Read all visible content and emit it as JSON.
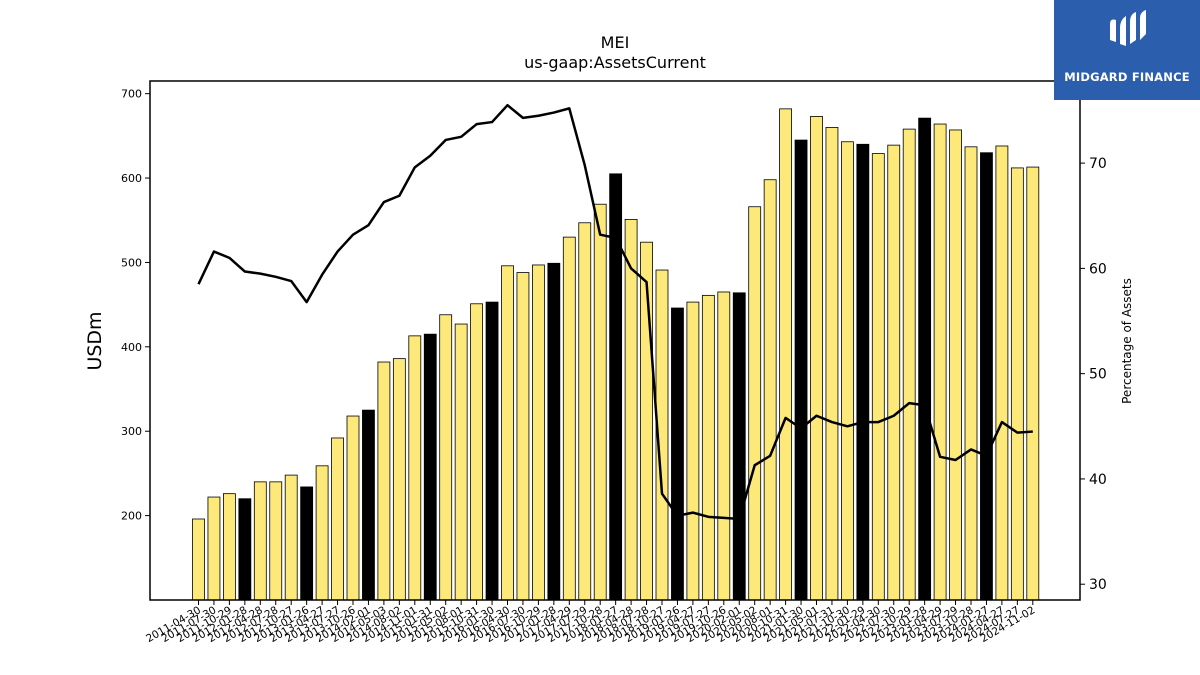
{
  "chart_data": {
    "type": "bar",
    "title": "MEI",
    "subtitle": "us-gaap:AssetsCurrent",
    "ylabel": "USDm",
    "y2label": "Percentage of Assets",
    "ylim": [
      100,
      715
    ],
    "y2lim": [
      28.5,
      77.8
    ],
    "yticks": [
      200,
      300,
      400,
      500,
      600,
      700
    ],
    "y2ticks": [
      30,
      40,
      50,
      60,
      70
    ],
    "categories": [
      "2011-04-30",
      "2011-07-30",
      "2011-10-29",
      "2012-01-28",
      "2012-04-28",
      "2012-07-28",
      "2012-10-27",
      "2013-01-26",
      "2013-04-27",
      "2013-07-27",
      "2013-10-26",
      "2014-02-01",
      "2014-05-03",
      "2014-08-02",
      "2014-11-01",
      "2015-01-31",
      "2015-05-02",
      "2015-08-01",
      "2015-10-31",
      "2016-01-30",
      "2016-04-30",
      "2016-07-30",
      "2016-10-29",
      "2017-01-28",
      "2017-04-29",
      "2017-07-29",
      "2017-10-28",
      "2018-01-27",
      "2018-04-28",
      "2018-07-28",
      "2018-10-27",
      "2019-01-26",
      "2019-04-27",
      "2019-07-27",
      "2019-10-26",
      "2020-02-01",
      "2020-05-02",
      "2020-08-01",
      "2020-10-31",
      "2021-01-30",
      "2021-05-01",
      "2021-07-31",
      "2021-10-30",
      "2022-01-29",
      "2022-04-30",
      "2022-07-30",
      "2022-10-29",
      "2023-01-28",
      "2023-04-29",
      "2023-07-29",
      "2023-10-28",
      "2024-01-27",
      "2024-04-27",
      "2024-07-27",
      "2024-11-02"
    ],
    "tick_labels": [
      "2011-04-30",
      "2011-07-30",
      "2011-10-29",
      "2012-01-28",
      "2012-04-28",
      "2012-07-28",
      "2012-10-27",
      "2013-01-26",
      "2013-04-27",
      "2013-07-27",
      "2013-10-26",
      "2014-02-01",
      "2014-05-03",
      "2014-08-02",
      "2014-11-01",
      "2015-01-31",
      "2015-05-02",
      "2015-08-01",
      "2015-10-31",
      "2016-01-30",
      "2016-04-30",
      "2016-07-30",
      "2016-10-29",
      "2017-01-28",
      "2017-04-29",
      "2017-07-29",
      "2017-10-28",
      "2018-01-27",
      "2018-04-28",
      "2018-07-28",
      "2018-10-27",
      "2019-01-26",
      "2019-04-27",
      "2019-07-27",
      "2019-10-26",
      "2020-02-01",
      "2020-05-02",
      "2020-08-01",
      "2020-10-31",
      "2021-01-30",
      "2021-05-01",
      "2021-07-31",
      "2021-10-30",
      "2022-01-29",
      "2022-04-30",
      "2022-07-30",
      "2022-10-29",
      "2023-01-28",
      "2023-04-29",
      "2023-07-29",
      "2023-10-28",
      "2024-01-27",
      "2024-04-27",
      "2024-07-27",
      "2024-11-02"
    ],
    "series": [
      {
        "type": "bar",
        "values": [
          196,
          222,
          226,
          220,
          240,
          240,
          248,
          234,
          259,
          292,
          318,
          325,
          382,
          386,
          413,
          415,
          438,
          427,
          451,
          453,
          496,
          488,
          497,
          499,
          530,
          547,
          569,
          605,
          551,
          524,
          491,
          446,
          453,
          461,
          465,
          464,
          566,
          598,
          682,
          645,
          673,
          660,
          643,
          640,
          629,
          639,
          658,
          671,
          664,
          657,
          637,
          630,
          638,
          612,
          613
        ],
        "fiscal_year_end": [
          false,
          false,
          false,
          true,
          false,
          false,
          false,
          true,
          false,
          false,
          false,
          true,
          false,
          false,
          false,
          true,
          false,
          false,
          false,
          true,
          false,
          false,
          false,
          true,
          false,
          false,
          false,
          true,
          false,
          false,
          false,
          true,
          false,
          false,
          false,
          true,
          false,
          false,
          false,
          true,
          false,
          false,
          false,
          true,
          false,
          false,
          false,
          true,
          false,
          false,
          false,
          true,
          false,
          false,
          false
        ]
      },
      {
        "type": "line",
        "axis": "right",
        "values": [
          58.5,
          61.6,
          61.0,
          59.7,
          59.5,
          59.2,
          58.8,
          56.8,
          59.4,
          61.6,
          63.2,
          64.1,
          66.3,
          66.9,
          69.6,
          70.7,
          72.2,
          72.5,
          73.7,
          73.9,
          75.5,
          74.3,
          74.5,
          74.8,
          75.2,
          69.8,
          63.2,
          62.9,
          60.0,
          58.7,
          38.6,
          36.5,
          36.8,
          36.4,
          36.3,
          36.2,
          41.3,
          42.2,
          45.8,
          44.8,
          46.0,
          45.4,
          45.0,
          45.4,
          45.4,
          46.0,
          47.2,
          47.0,
          42.1,
          41.8,
          42.8,
          42.2,
          45.4,
          44.4,
          44.5
        ]
      }
    ],
    "colors": {
      "bar_fill": "#fde97a",
      "bar_fill_highlight": "#000000",
      "bar_edge": "#000000",
      "line": "#000000",
      "logo_bg": "#2b5fae",
      "logo_fg": "#ffffff"
    },
    "grid": false,
    "legend": "none"
  },
  "logo": {
    "text": "MIDGARD FINANCE",
    "icon": "midgard-logo-icon"
  }
}
